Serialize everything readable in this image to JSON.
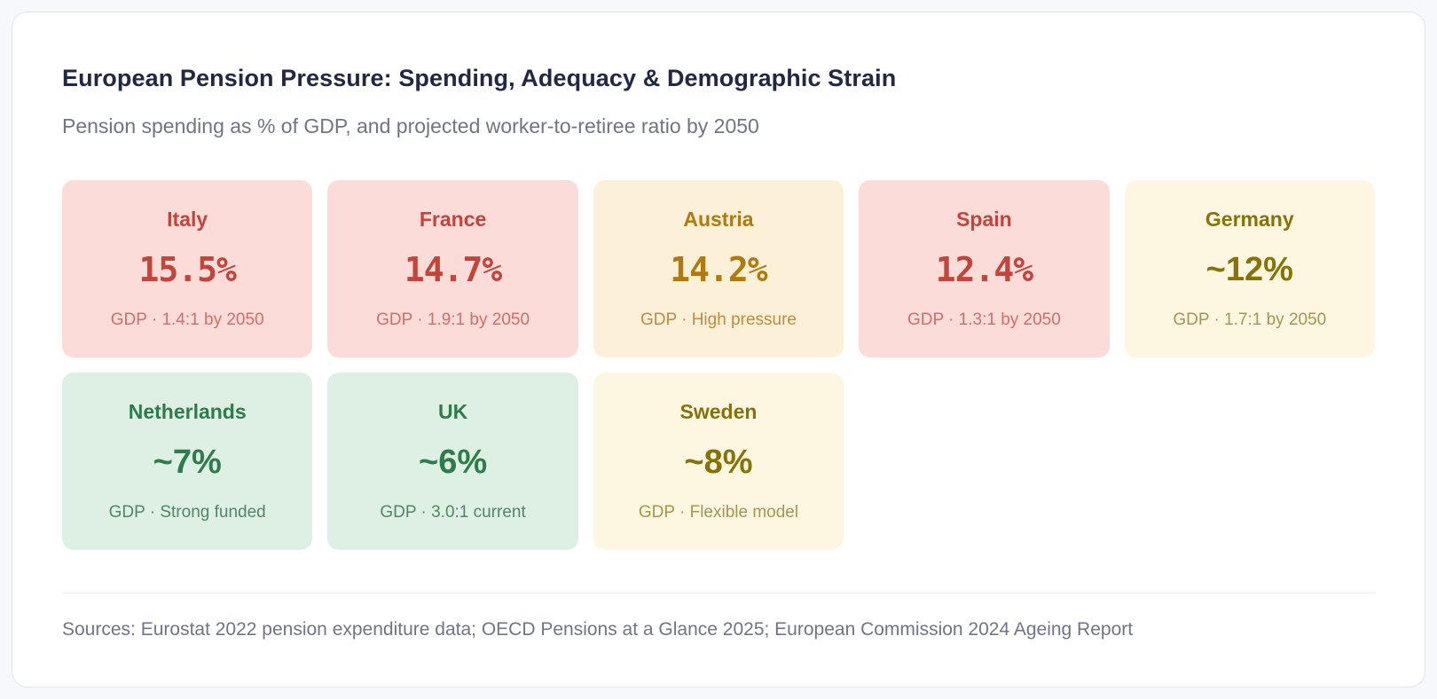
{
  "card": {
    "title": "European Pension Pressure: Spending, Adequacy & Demographic Strain",
    "subtitle": "Pension spending as % of GDP, and projected worker-to-retiree ratio by 2050",
    "sources": "Sources: Eurostat 2022 pension expenditure data; OECD Pensions at a Glance 2025; European Commission 2024 Ageing Report"
  },
  "palette": {
    "red": {
      "bg": "#fbdcd9",
      "text": "#c2453c",
      "sub": "#d06f66"
    },
    "amber": {
      "bg": "#fcf0d8",
      "text": "#b1790e",
      "sub": "#bd8c44"
    },
    "olive": {
      "bg": "#fdf7e2",
      "text": "#867208",
      "sub": "#a5954d"
    },
    "green": {
      "bg": "#def0e4",
      "text": "#2e7b4b",
      "sub": "#4f8765"
    },
    "page_bg": "#f7f8fb",
    "card_bg": "#ffffff",
    "card_border": "#e2e4ee",
    "title_text": "#212843",
    "muted_text": "#6f7488"
  },
  "tiles": [
    {
      "name": "Italy",
      "value": "15.5%",
      "sub": "GDP · 1.4:1 by 2050",
      "tone": "red",
      "approximate": false
    },
    {
      "name": "France",
      "value": "14.7%",
      "sub": "GDP · 1.9:1 by 2050",
      "tone": "red",
      "approximate": false
    },
    {
      "name": "Austria",
      "value": "14.2%",
      "sub": "GDP · High pressure",
      "tone": "amber",
      "approximate": false
    },
    {
      "name": "Spain",
      "value": "12.4%",
      "sub": "GDP · 1.3:1 by 2050",
      "tone": "red",
      "approximate": false
    },
    {
      "name": "Germany",
      "value": "~12%",
      "sub": "GDP · 1.7:1 by 2050",
      "tone": "olive",
      "approximate": true
    },
    {
      "name": "Netherlands",
      "value": "~7%",
      "sub": "GDP · Strong funded",
      "tone": "green",
      "approximate": true
    },
    {
      "name": "UK",
      "value": "~6%",
      "sub": "GDP · 3.0:1 current",
      "tone": "green",
      "approximate": true
    },
    {
      "name": "Sweden",
      "value": "~8%",
      "sub": "GDP · Flexible model",
      "tone": "olive",
      "approximate": true
    }
  ],
  "chart_data": {
    "type": "table",
    "title": "European Pension Pressure: Spending, Adequacy & Demographic Strain",
    "subtitle": "Pension spending as % of GDP, and projected worker-to-retiree ratio by 2050",
    "categories": [
      "Italy",
      "France",
      "Austria",
      "Spain",
      "Germany",
      "Netherlands",
      "UK",
      "Sweden"
    ],
    "series": [
      {
        "name": "Pension spending (% of GDP)",
        "values": [
          15.5,
          14.7,
          14.2,
          12.4,
          12,
          7,
          6,
          8
        ],
        "approximate": [
          false,
          false,
          false,
          false,
          true,
          true,
          true,
          true
        ]
      },
      {
        "name": "Worker-to-retiree ratio / note",
        "values": [
          "1.4:1 by 2050",
          "1.9:1 by 2050",
          "High pressure",
          "1.3:1 by 2050",
          "1.7:1 by 2050",
          "Strong funded",
          "3.0:1 current",
          "Flexible model"
        ]
      },
      {
        "name": "Pressure tone",
        "values": [
          "red",
          "red",
          "amber",
          "red",
          "olive",
          "green",
          "green",
          "olive"
        ]
      }
    ],
    "legend_position": "none",
    "grid": false
  }
}
